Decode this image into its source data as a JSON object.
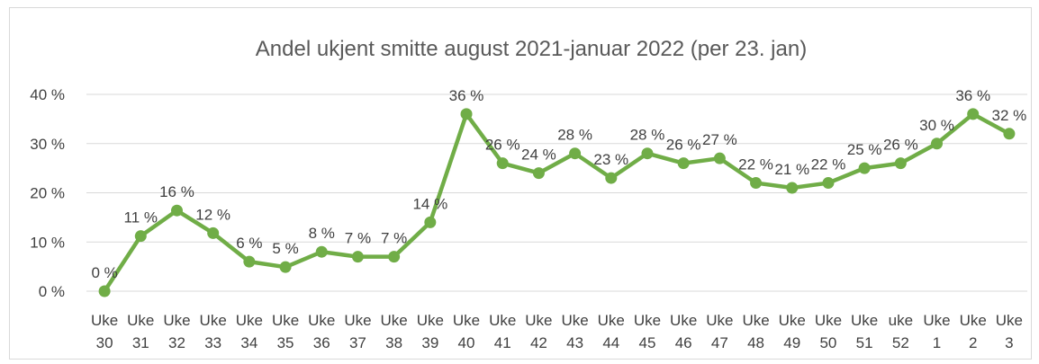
{
  "chart_data": {
    "type": "line",
    "title": "Andel ukjent smitte august 2021-januar 2022 (per 23. jan)",
    "xlabel": "",
    "ylabel": "",
    "ylim": [
      0,
      40
    ],
    "yticks": [
      "0 %",
      "10 %",
      "20 %",
      "30 %",
      "40 %"
    ],
    "grid": true,
    "legend": "none",
    "color": "#70ad47",
    "categories": [
      [
        "Uke",
        "30"
      ],
      [
        "Uke",
        "31"
      ],
      [
        "Uke",
        "32"
      ],
      [
        "Uke",
        "33"
      ],
      [
        "Uke",
        "34"
      ],
      [
        "Uke",
        "35"
      ],
      [
        "Uke",
        "36"
      ],
      [
        "Uke",
        "37"
      ],
      [
        "Uke",
        "38"
      ],
      [
        "Uke",
        "39"
      ],
      [
        "Uke",
        "40"
      ],
      [
        "Uke",
        "41"
      ],
      [
        "Uke",
        "42"
      ],
      [
        "Uke",
        "43"
      ],
      [
        "Uke",
        "44"
      ],
      [
        "Uke",
        "45"
      ],
      [
        "Uke",
        "46"
      ],
      [
        "Uke",
        "47"
      ],
      [
        "Uke",
        "48"
      ],
      [
        "Uke",
        "49"
      ],
      [
        "Uke",
        "50"
      ],
      [
        "Uke",
        "51"
      ],
      [
        "uke",
        "52"
      ],
      [
        "Uke",
        "1"
      ],
      [
        "Uke",
        "2"
      ],
      [
        "Uke",
        "3"
      ]
    ],
    "values": [
      0,
      11.2,
      16.4,
      11.8,
      6,
      4.9,
      8,
      7,
      7,
      14,
      36,
      26,
      24,
      28,
      23,
      28,
      26,
      27,
      22,
      21,
      22,
      25,
      26,
      30,
      36,
      32
    ],
    "data_labels": [
      "0 %",
      "11 %",
      "16 %",
      "12 %",
      "6 %",
      "5 %",
      "8 %",
      "7 %",
      "7 %",
      "14 %",
      "36 %",
      "26 %",
      "24 %",
      "28 %",
      "23 %",
      "28 %",
      "26 %",
      "27 %",
      "22 %",
      "21 %",
      "22 %",
      "25 %",
      "26 %",
      "30 %",
      "36 %",
      "32 %"
    ]
  }
}
